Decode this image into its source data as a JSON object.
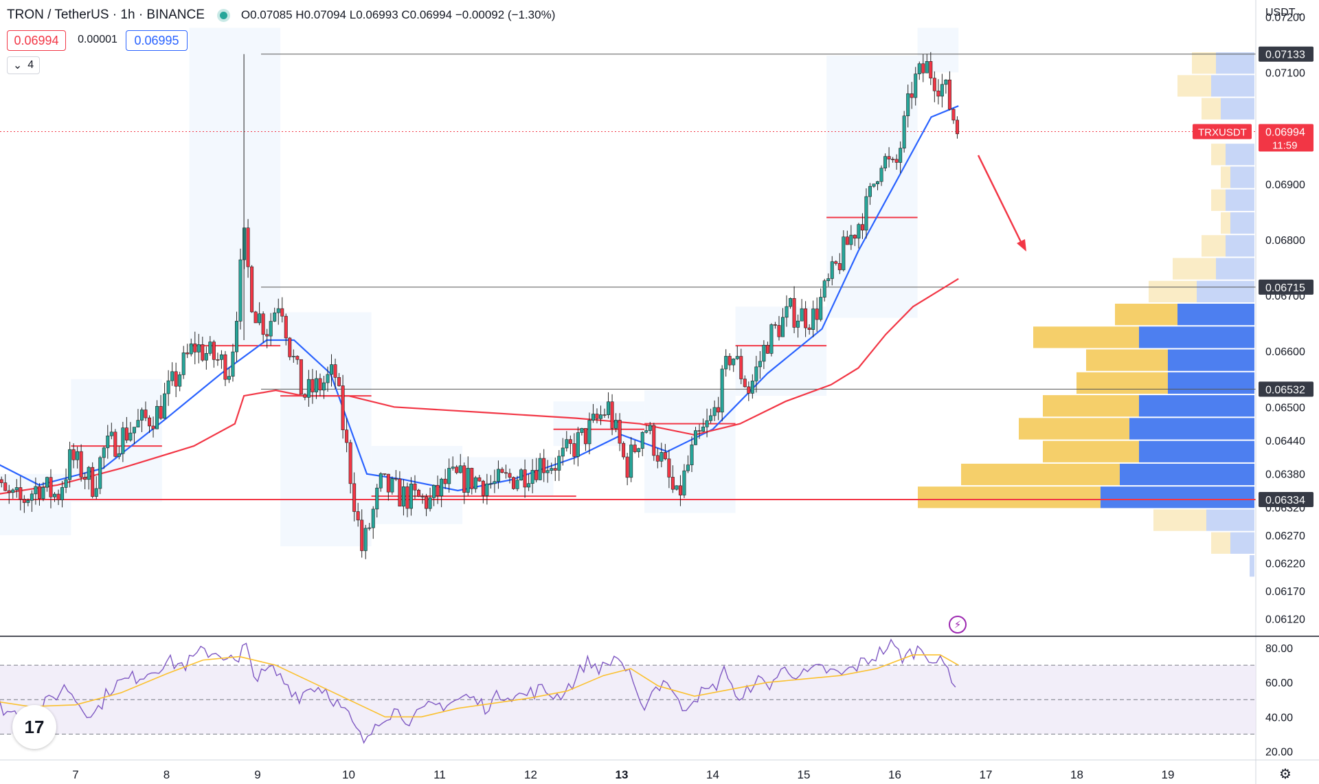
{
  "header": {
    "symbol": "TRON / TetherUS · 1h · BINANCE",
    "ohlc": "O0.07085  H0.07094  L0.06993  C0.06994  −0.00092 (−1.30%)"
  },
  "trade": {
    "sell": "0.06994",
    "spread": "0.00001",
    "buy": "0.06995"
  },
  "indicators_count": "4",
  "currency": "USDT",
  "colors": {
    "up": "#26a69a",
    "down": "#f23645",
    "ema_fast": "#2962ff",
    "ema_slow": "#f23645",
    "rsi": "#7e57c2",
    "rsi_ma": "#fbc02d"
  },
  "icons": {
    "chevron": "chevron-down-icon",
    "logo": "tradingview-logo",
    "settings": "gear-icon",
    "alert": "lightning-icon"
  },
  "chart_data": [
    {
      "type": "candlestick",
      "title": "TRON / TetherUS · 1h · BINANCE",
      "ylim": [
        0.0609,
        0.0723
      ],
      "y_ticks": [
        "0.07200",
        "0.07100",
        "0.06900",
        "0.06800",
        "0.06700",
        "0.06600",
        "0.06500",
        "0.06440",
        "0.06380",
        "0.06320",
        "0.06270",
        "0.06220",
        "0.06170",
        "0.06120"
      ],
      "x_ticks": [
        "7",
        "8",
        "9",
        "10",
        "11",
        "12",
        "13",
        "14",
        "15",
        "16",
        "17",
        "18",
        "19"
      ],
      "bold_x_tick": "13",
      "key_levels": [
        "0.07133",
        "0.06715",
        "0.06532",
        "0.06334"
      ],
      "current_price": {
        "symbol": "TRXUSDT",
        "value": "0.06994",
        "countdown": "11:59"
      },
      "close_path": [
        [
          6.0,
          0.0644
        ],
        [
          6.2,
          0.0634
        ],
        [
          6.4,
          0.0633
        ],
        [
          6.6,
          0.0636
        ],
        [
          6.8,
          0.0634
        ],
        [
          6.95,
          0.0641
        ],
        [
          7.2,
          0.0636
        ],
        [
          7.3,
          0.0642
        ],
        [
          7.6,
          0.0646
        ],
        [
          7.9,
          0.0649
        ],
        [
          8.1,
          0.0655
        ],
        [
          8.3,
          0.0661
        ],
        [
          8.5,
          0.0659
        ],
        [
          8.7,
          0.0657
        ],
        [
          8.85,
          0.068
        ],
        [
          8.95,
          0.0668
        ],
        [
          9.1,
          0.0664
        ],
        [
          9.25,
          0.067
        ],
        [
          9.35,
          0.0661
        ],
        [
          9.5,
          0.0652
        ],
        [
          9.7,
          0.0654
        ],
        [
          9.85,
          0.0656
        ],
        [
          10.0,
          0.064
        ],
        [
          10.15,
          0.0624
        ],
        [
          10.35,
          0.0636
        ],
        [
          10.6,
          0.0634
        ],
        [
          10.9,
          0.0633
        ],
        [
          11.1,
          0.0637
        ],
        [
          11.4,
          0.0637
        ],
        [
          11.6,
          0.0636
        ],
        [
          11.9,
          0.0638
        ],
        [
          12.1,
          0.064
        ],
        [
          12.3,
          0.064
        ],
        [
          12.6,
          0.0645
        ],
        [
          12.85,
          0.065
        ],
        [
          13.05,
          0.0639
        ],
        [
          13.25,
          0.0647
        ],
        [
          13.45,
          0.064
        ],
        [
          13.6,
          0.0633
        ],
        [
          13.8,
          0.0643
        ],
        [
          14.0,
          0.0648
        ],
        [
          14.2,
          0.066
        ],
        [
          14.4,
          0.0653
        ],
        [
          14.6,
          0.0662
        ],
        [
          14.85,
          0.0667
        ],
        [
          15.1,
          0.0666
        ],
        [
          15.3,
          0.0673
        ],
        [
          15.5,
          0.068
        ],
        [
          15.7,
          0.0686
        ],
        [
          15.85,
          0.0695
        ],
        [
          16.0,
          0.0692
        ],
        [
          16.2,
          0.0708
        ],
        [
          16.35,
          0.0711
        ],
        [
          16.55,
          0.0707
        ],
        [
          16.7,
          0.0699
        ]
      ],
      "series": [
        {
          "name": "EMA fast",
          "values": [
            [
              6.0,
              0.0641
            ],
            [
              6.6,
              0.0636
            ],
            [
              7.3,
              0.0639
            ],
            [
              8.0,
              0.0648
            ],
            [
              8.6,
              0.0656
            ],
            [
              9.1,
              0.0662
            ],
            [
              9.4,
              0.0662
            ],
            [
              9.8,
              0.0656
            ],
            [
              10.2,
              0.0638
            ],
            [
              10.6,
              0.0637
            ],
            [
              11.2,
              0.0635
            ],
            [
              11.8,
              0.0637
            ],
            [
              12.5,
              0.0641
            ],
            [
              13.0,
              0.0645
            ],
            [
              13.5,
              0.0642
            ],
            [
              14.0,
              0.0646
            ],
            [
              14.6,
              0.0656
            ],
            [
              15.2,
              0.0664
            ],
            [
              15.6,
              0.0678
            ],
            [
              16.0,
              0.069
            ],
            [
              16.4,
              0.0702
            ],
            [
              16.7,
              0.0704
            ]
          ]
        },
        {
          "name": "EMA slow",
          "values": [
            [
              6.0,
              0.0634
            ],
            [
              6.8,
              0.0636
            ],
            [
              7.5,
              0.0639
            ],
            [
              8.3,
              0.0643
            ],
            [
              8.75,
              0.0647
            ],
            [
              8.85,
              0.0652
            ],
            [
              9.2,
              0.0653
            ],
            [
              9.5,
              0.0652
            ],
            [
              10.0,
              0.0652
            ],
            [
              10.5,
              0.065
            ],
            [
              11.5,
              0.0649
            ],
            [
              12.5,
              0.0648
            ],
            [
              13.2,
              0.0647
            ],
            [
              13.8,
              0.0645
            ],
            [
              14.3,
              0.0647
            ],
            [
              14.8,
              0.0651
            ],
            [
              15.3,
              0.0654
            ],
            [
              15.6,
              0.0657
            ],
            [
              15.9,
              0.0663
            ],
            [
              16.2,
              0.0668
            ],
            [
              16.5,
              0.0671
            ],
            [
              16.7,
              0.0673
            ]
          ]
        }
      ],
      "volume_profile": [
        {
          "price": 0.07117,
          "up": 0.5,
          "down": 0.8
        },
        {
          "price": 0.07076,
          "up": 0.7,
          "down": 0.9
        },
        {
          "price": 0.07035,
          "up": 0.4,
          "down": 0.7
        },
        {
          "price": 0.06953,
          "up": 0.3,
          "down": 0.6
        },
        {
          "price": 0.06912,
          "up": 0.2,
          "down": 0.5
        },
        {
          "price": 0.06871,
          "up": 0.3,
          "down": 0.6
        },
        {
          "price": 0.0683,
          "up": 0.2,
          "down": 0.5
        },
        {
          "price": 0.06789,
          "up": 0.5,
          "down": 0.6
        },
        {
          "price": 0.06748,
          "up": 0.9,
          "down": 0.8
        },
        {
          "price": 0.06707,
          "up": 1.0,
          "down": 1.2
        },
        {
          "price": 0.06666,
          "up": 1.3,
          "down": 1.6
        },
        {
          "price": 0.06625,
          "up": 2.2,
          "down": 2.4
        },
        {
          "price": 0.06584,
          "up": 1.7,
          "down": 1.8
        },
        {
          "price": 0.06543,
          "up": 1.9,
          "down": 1.8
        },
        {
          "price": 0.06502,
          "up": 2.0,
          "down": 2.4
        },
        {
          "price": 0.06461,
          "up": 2.3,
          "down": 2.6
        },
        {
          "price": 0.0642,
          "up": 2.0,
          "down": 2.4
        },
        {
          "price": 0.06379,
          "up": 3.3,
          "down": 2.8
        },
        {
          "price": 0.06338,
          "up": 3.8,
          "down": 3.2
        },
        {
          "price": 0.06297,
          "up": 1.1,
          "down": 1.0
        },
        {
          "price": 0.06256,
          "up": 0.4,
          "down": 0.5
        },
        {
          "price": 0.06215,
          "up": 0.0,
          "down": 0.1
        }
      ]
    },
    {
      "type": "line",
      "ylim": [
        15,
        86
      ],
      "y_ticks": [
        "80.00",
        "60.00",
        "40.00",
        "20.00"
      ],
      "levels": [
        70,
        50,
        30
      ],
      "series": [
        {
          "name": "RSI",
          "values": [
            [
              6.0,
              52
            ],
            [
              6.3,
              42
            ],
            [
              6.6,
              44
            ],
            [
              6.9,
              58
            ],
            [
              7.05,
              47
            ],
            [
              7.2,
              41
            ],
            [
              7.4,
              58
            ],
            [
              7.6,
              62
            ],
            [
              7.8,
              66
            ],
            [
              8.0,
              72
            ],
            [
              8.2,
              70
            ],
            [
              8.4,
              78
            ],
            [
              8.6,
              77
            ],
            [
              8.8,
              70
            ],
            [
              8.85,
              83
            ],
            [
              9.0,
              62
            ],
            [
              9.15,
              68
            ],
            [
              9.3,
              60
            ],
            [
              9.45,
              52
            ],
            [
              9.6,
              58
            ],
            [
              9.75,
              56
            ],
            [
              9.9,
              46
            ],
            [
              10.0,
              40
            ],
            [
              10.1,
              30
            ],
            [
              10.2,
              24
            ],
            [
              10.3,
              38
            ],
            [
              10.5,
              44
            ],
            [
              10.7,
              38
            ],
            [
              10.9,
              46
            ],
            [
              11.1,
              48
            ],
            [
              11.3,
              52
            ],
            [
              11.5,
              46
            ],
            [
              11.7,
              54
            ],
            [
              11.9,
              52
            ],
            [
              12.1,
              56
            ],
            [
              12.3,
              52
            ],
            [
              12.5,
              62
            ],
            [
              12.6,
              72
            ],
            [
              12.8,
              68
            ],
            [
              12.95,
              76
            ],
            [
              13.1,
              62
            ],
            [
              13.2,
              44
            ],
            [
              13.35,
              56
            ],
            [
              13.5,
              62
            ],
            [
              13.65,
              44
            ],
            [
              13.8,
              52
            ],
            [
              14.0,
              56
            ],
            [
              14.15,
              68
            ],
            [
              14.3,
              46
            ],
            [
              14.45,
              62
            ],
            [
              14.6,
              58
            ],
            [
              14.8,
              68
            ],
            [
              15.0,
              64
            ],
            [
              15.2,
              68
            ],
            [
              15.4,
              64
            ],
            [
              15.6,
              70
            ],
            [
              15.8,
              76
            ],
            [
              15.95,
              82
            ],
            [
              16.1,
              74
            ],
            [
              16.2,
              78
            ],
            [
              16.3,
              80
            ],
            [
              16.45,
              72
            ],
            [
              16.55,
              70
            ],
            [
              16.65,
              62
            ],
            [
              16.7,
              50
            ]
          ]
        },
        {
          "name": "RSI MA",
          "values": [
            [
              6.0,
              50
            ],
            [
              6.5,
              46
            ],
            [
              7.0,
              47
            ],
            [
              7.5,
              54
            ],
            [
              8.0,
              65
            ],
            [
              8.4,
              73
            ],
            [
              8.8,
              75
            ],
            [
              9.2,
              70
            ],
            [
              9.6,
              60
            ],
            [
              10.0,
              50
            ],
            [
              10.4,
              40
            ],
            [
              10.8,
              40
            ],
            [
              11.2,
              45
            ],
            [
              11.6,
              48
            ],
            [
              12.0,
              51
            ],
            [
              12.4,
              55
            ],
            [
              12.8,
              64
            ],
            [
              13.1,
              68
            ],
            [
              13.4,
              58
            ],
            [
              13.8,
              52
            ],
            [
              14.2,
              56
            ],
            [
              14.6,
              60
            ],
            [
              15.0,
              62
            ],
            [
              15.4,
              64
            ],
            [
              15.8,
              68
            ],
            [
              16.2,
              76
            ],
            [
              16.5,
              76
            ],
            [
              16.7,
              70
            ]
          ]
        }
      ]
    }
  ]
}
